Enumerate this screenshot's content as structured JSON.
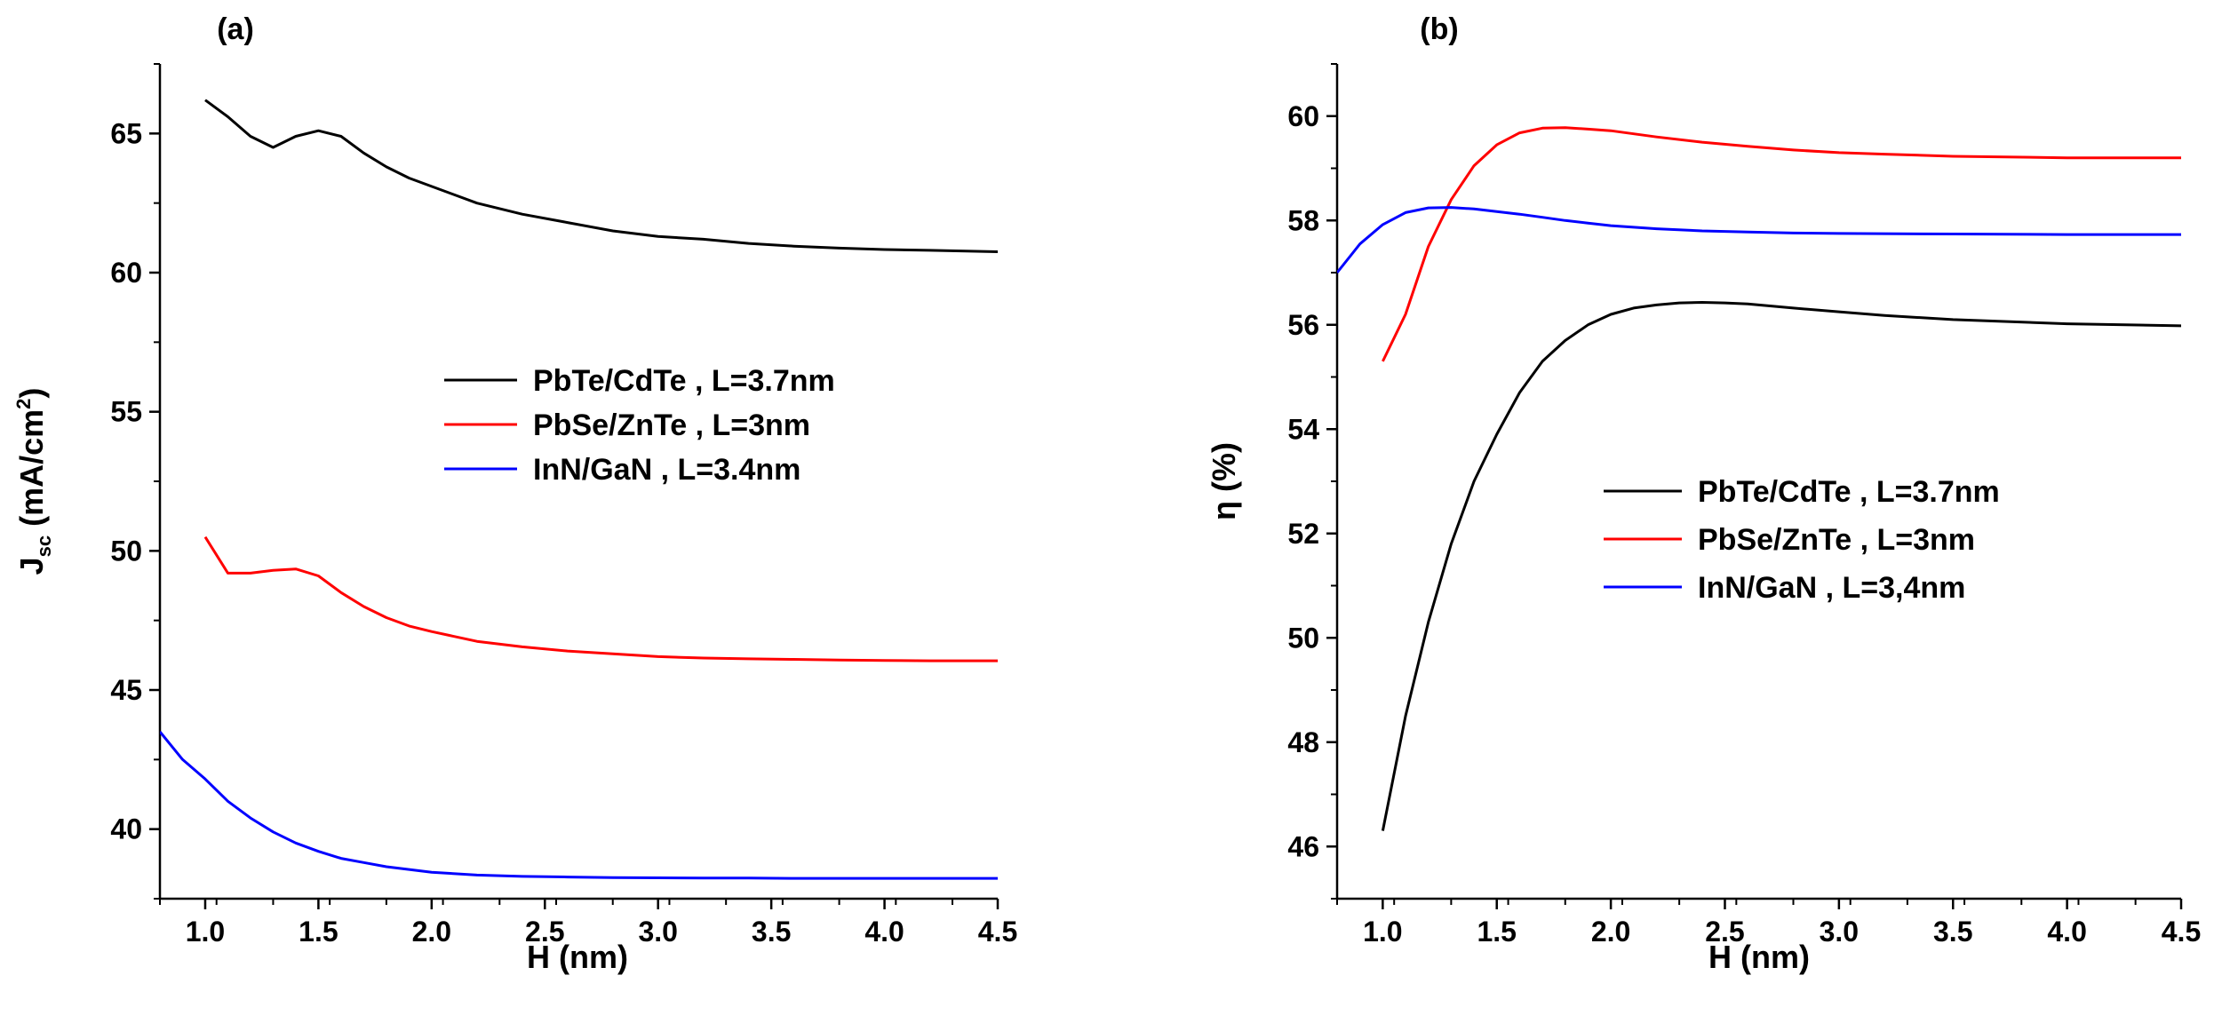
{
  "chart_data": [
    {
      "type": "line",
      "panel_label": "(a)",
      "xlabel": "H (nm)",
      "ylabel": {
        "main": "J",
        "sub": "sc",
        "unit_open": " (mA/cm",
        "sup": "2",
        "unit_close": ")"
      },
      "xlim": [
        0.8,
        4.5
      ],
      "ylim": [
        37.5,
        67.5
      ],
      "xticks": [
        1.0,
        1.5,
        2.0,
        2.5,
        3.0,
        3.5,
        4.0,
        4.5
      ],
      "xtick_labels": [
        "1.0",
        "1.5",
        "2.0",
        "2.5",
        "3.0",
        "3.5",
        "4.0",
        "4.5"
      ],
      "yticks": [
        40,
        45,
        50,
        55,
        60,
        65
      ],
      "ytick_labels": [
        "40",
        "45",
        "50",
        "55",
        "60",
        "65"
      ],
      "legend_position": "middle-right",
      "series": [
        {
          "name": "PbTe/CdTe , L=3.7nm",
          "color": "#000000",
          "x": [
            1.0,
            1.1,
            1.2,
            1.3,
            1.4,
            1.5,
            1.6,
            1.7,
            1.8,
            1.9,
            2.0,
            2.2,
            2.4,
            2.6,
            2.8,
            3.0,
            3.2,
            3.4,
            3.6,
            3.8,
            4.0,
            4.2,
            4.5
          ],
          "y": [
            66.2,
            65.6,
            64.9,
            64.5,
            64.9,
            65.1,
            64.9,
            64.3,
            63.8,
            63.4,
            63.1,
            62.5,
            62.1,
            61.8,
            61.5,
            61.3,
            61.2,
            61.05,
            60.95,
            60.88,
            60.83,
            60.8,
            60.75
          ]
        },
        {
          "name": "PbSe/ZnTe , L=3nm",
          "color": "#ff0000",
          "x": [
            1.0,
            1.1,
            1.2,
            1.3,
            1.4,
            1.5,
            1.6,
            1.7,
            1.8,
            1.9,
            2.0,
            2.2,
            2.4,
            2.6,
            2.8,
            3.0,
            3.2,
            3.4,
            3.6,
            3.8,
            4.0,
            4.2,
            4.5
          ],
          "y": [
            50.5,
            49.2,
            49.2,
            49.3,
            49.35,
            49.1,
            48.5,
            48.0,
            47.6,
            47.3,
            47.1,
            46.75,
            46.55,
            46.4,
            46.3,
            46.2,
            46.15,
            46.12,
            46.1,
            46.08,
            46.06,
            46.05,
            46.05
          ]
        },
        {
          "name": "InN/GaN , L=3.4nm",
          "color": "#0000ff",
          "x": [
            0.8,
            0.9,
            1.0,
            1.1,
            1.2,
            1.3,
            1.4,
            1.5,
            1.6,
            1.7,
            1.8,
            1.9,
            2.0,
            2.2,
            2.4,
            2.6,
            2.8,
            3.0,
            3.2,
            3.4,
            3.6,
            3.8,
            4.0,
            4.2,
            4.5
          ],
          "y": [
            43.5,
            42.5,
            41.8,
            41.0,
            40.4,
            39.9,
            39.5,
            39.2,
            38.95,
            38.8,
            38.65,
            38.55,
            38.45,
            38.35,
            38.3,
            38.28,
            38.26,
            38.25,
            38.24,
            38.24,
            38.23,
            38.23,
            38.23,
            38.23,
            38.23
          ]
        }
      ]
    },
    {
      "type": "line",
      "panel_label": "(b)",
      "xlabel": "H (nm)",
      "ylabel": {
        "main": "η (%)"
      },
      "xlim": [
        0.8,
        4.5
      ],
      "ylim": [
        45.0,
        61.0
      ],
      "xticks": [
        1.0,
        1.5,
        2.0,
        2.5,
        3.0,
        3.5,
        4.0,
        4.5
      ],
      "xtick_labels": [
        "1.0",
        "1.5",
        "2.0",
        "2.5",
        "3.0",
        "3.5",
        "4.0",
        "4.5"
      ],
      "yticks": [
        46,
        48,
        50,
        52,
        54,
        56,
        58,
        60
      ],
      "ytick_labels": [
        "46",
        "48",
        "50",
        "52",
        "54",
        "56",
        "58",
        "60"
      ],
      "legend_position": "middle-right",
      "series": [
        {
          "name": "PbTe/CdTe , L=3.7nm",
          "color": "#000000",
          "x": [
            1.0,
            1.1,
            1.2,
            1.3,
            1.4,
            1.5,
            1.6,
            1.7,
            1.8,
            1.9,
            2.0,
            2.1,
            2.2,
            2.3,
            2.4,
            2.5,
            2.6,
            2.8,
            3.0,
            3.2,
            3.5,
            4.0,
            4.5
          ],
          "y": [
            46.3,
            48.5,
            50.3,
            51.8,
            53.0,
            53.9,
            54.7,
            55.3,
            55.7,
            56.0,
            56.2,
            56.32,
            56.38,
            56.42,
            56.43,
            56.42,
            56.4,
            56.32,
            56.25,
            56.18,
            56.1,
            56.02,
            55.98
          ]
        },
        {
          "name": "PbSe/ZnTe , L=3nm",
          "color": "#ff0000",
          "x": [
            1.0,
            1.1,
            1.2,
            1.3,
            1.4,
            1.5,
            1.6,
            1.7,
            1.8,
            1.9,
            2.0,
            2.2,
            2.4,
            2.6,
            2.8,
            3.0,
            3.2,
            3.5,
            4.0,
            4.5
          ],
          "y": [
            55.3,
            56.2,
            57.5,
            58.4,
            59.05,
            59.45,
            59.68,
            59.77,
            59.78,
            59.75,
            59.72,
            59.6,
            59.5,
            59.42,
            59.35,
            59.3,
            59.27,
            59.23,
            59.2,
            59.2
          ]
        },
        {
          "name": "InN/GaN , L=3,4nm",
          "color": "#0000ff",
          "x": [
            0.8,
            0.9,
            1.0,
            1.1,
            1.2,
            1.3,
            1.4,
            1.5,
            1.6,
            1.7,
            1.8,
            1.9,
            2.0,
            2.2,
            2.4,
            2.6,
            2.8,
            3.0,
            3.5,
            4.0,
            4.5
          ],
          "y": [
            57.0,
            57.55,
            57.92,
            58.15,
            58.24,
            58.25,
            58.22,
            58.17,
            58.12,
            58.06,
            58.0,
            57.95,
            57.9,
            57.84,
            57.8,
            57.78,
            57.76,
            57.75,
            57.74,
            57.73,
            57.73
          ]
        }
      ]
    }
  ]
}
